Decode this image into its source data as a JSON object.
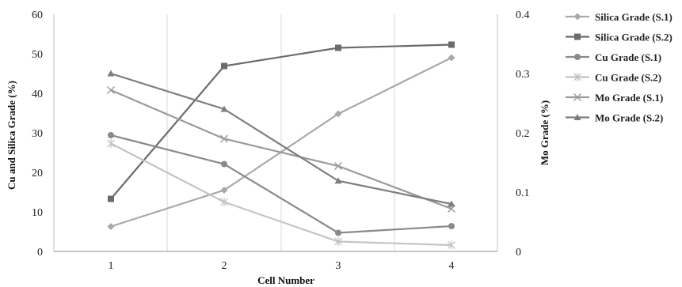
{
  "chart_data": {
    "type": "line",
    "xlabel": "Cell Number",
    "ylabel": "Cu and Silica Grade (%)",
    "y2label": "Mo Grade (%)",
    "categories": [
      "1",
      "2",
      "3",
      "4"
    ],
    "ylim": [
      0,
      60
    ],
    "y2lim": [
      0,
      0.4
    ],
    "yticks": [
      "0",
      "10",
      "20",
      "30",
      "40",
      "50",
      "60"
    ],
    "y2ticks": [
      "0",
      "0.1",
      "0.2",
      "0.3",
      "0.4"
    ],
    "grid": "vertical",
    "legend_position": "right",
    "series": [
      {
        "name": "Silica Grade (S.1)",
        "axis": "left",
        "marker": "diamond",
        "color": "#a9a9a9",
        "values": [
          6.3,
          15.5,
          34.8,
          49.0
        ]
      },
      {
        "name": "Silica Grade (S.2)",
        "axis": "left",
        "marker": "square",
        "color": "#6b6b6b",
        "values": [
          13.3,
          46.9,
          51.5,
          52.3
        ]
      },
      {
        "name": "Cu Grade (S.1)",
        "axis": "left",
        "marker": "circle",
        "color": "#8a8a8a",
        "values": [
          29.4,
          22.1,
          4.7,
          6.4
        ]
      },
      {
        "name": "Cu Grade (S.2)",
        "axis": "left",
        "marker": "star",
        "color": "#c4c4c4",
        "values": [
          27.3,
          12.5,
          2.5,
          1.6
        ]
      },
      {
        "name": "Mo Grade (S.1)",
        "axis": "right",
        "marker": "x",
        "color": "#9a9a9a",
        "values": [
          0.272,
          0.19,
          0.144,
          0.072
        ]
      },
      {
        "name": "Mo Grade (S.2)",
        "axis": "right",
        "marker": "triangle",
        "color": "#7d7d7d",
        "values": [
          0.3,
          0.24,
          0.119,
          0.08
        ]
      }
    ]
  }
}
